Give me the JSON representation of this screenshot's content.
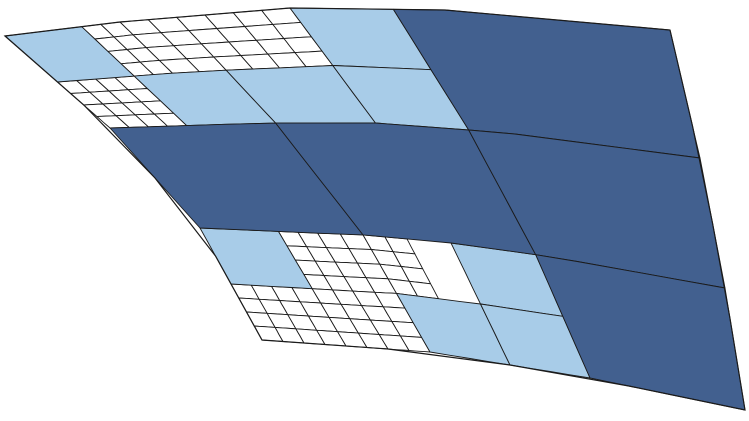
{
  "figure": {
    "description_kind": "adaptive quadtree mesh on a curved surface",
    "colors": {
      "coarse": "#42608f",
      "medium": "#a8cce8",
      "fine": "#ffffff",
      "edge": "#1b1b1b",
      "background": "#ffffff"
    },
    "levels": {
      "coarse": 1,
      "medium": 2,
      "fine": 3
    },
    "grid_units": 12
  }
}
